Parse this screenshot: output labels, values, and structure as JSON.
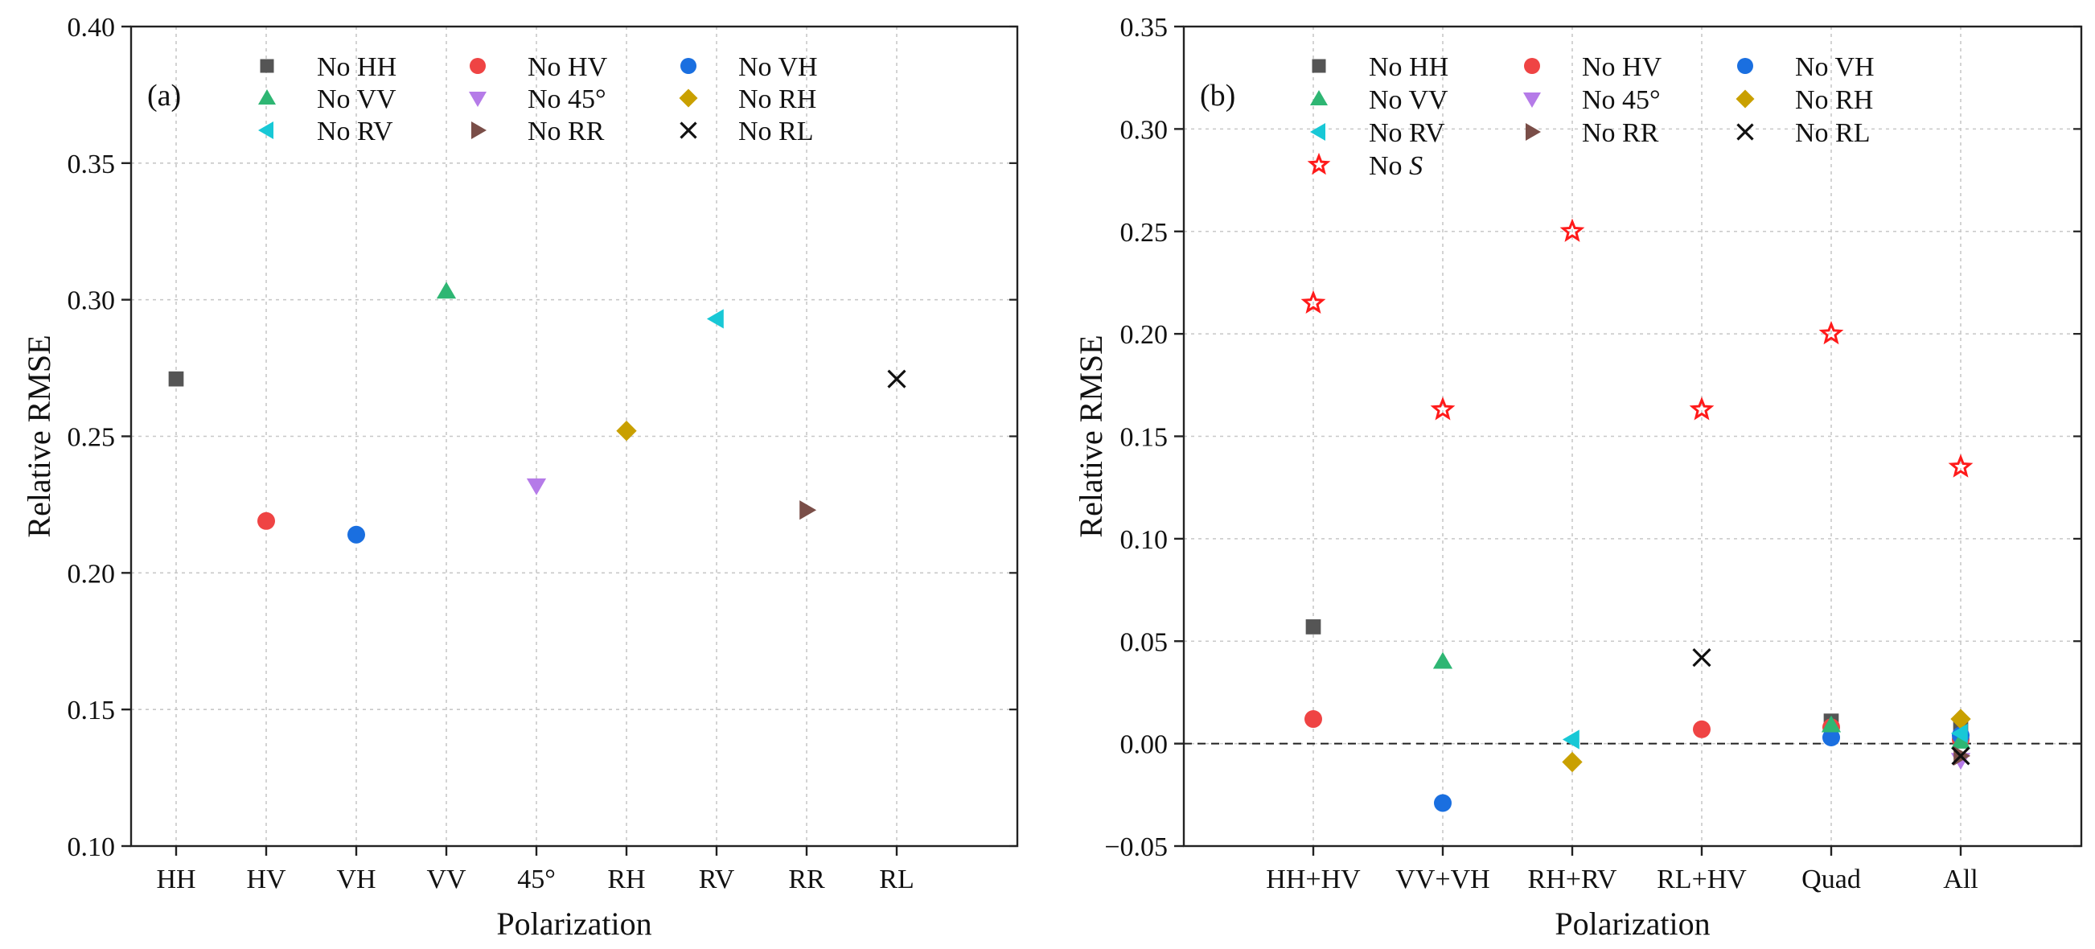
{
  "chart_data": [
    {
      "panel_label": "(a)",
      "type": "scatter",
      "xlabel": "Polarization",
      "ylabel": "Relative RMSE",
      "ylim": [
        0.1,
        0.4
      ],
      "yticks": [
        "0.10",
        "0.15",
        "0.20",
        "0.25",
        "0.30",
        "0.35",
        "0.40"
      ],
      "ytick_values": [
        0.1,
        0.15,
        0.2,
        0.25,
        0.3,
        0.35,
        0.4
      ],
      "categories": [
        "HH",
        "HV",
        "VH",
        "VV",
        "45°",
        "RH",
        "RV",
        "RR",
        "RL"
      ],
      "grid": true,
      "series": [
        {
          "name": "No HH",
          "marker": "square",
          "color": "#555555",
          "points": [
            {
              "cat": 0,
              "y": 0.271
            }
          ]
        },
        {
          "name": "No HV",
          "marker": "circle",
          "color": "#ef4444",
          "points": [
            {
              "cat": 1,
              "y": 0.219
            }
          ]
        },
        {
          "name": "No VH",
          "marker": "circle",
          "color": "#1a6fe0",
          "points": [
            {
              "cat": 2,
              "y": 0.214
            }
          ]
        },
        {
          "name": "No VV",
          "marker": "triangle-up",
          "color": "#2eb673",
          "points": [
            {
              "cat": 3,
              "y": 0.303
            }
          ]
        },
        {
          "name": "No 45°",
          "marker": "triangle-down",
          "color": "#b57be8",
          "points": [
            {
              "cat": 4,
              "y": 0.232
            }
          ]
        },
        {
          "name": "No RH",
          "marker": "diamond",
          "color": "#c9a000",
          "points": [
            {
              "cat": 5,
              "y": 0.252
            }
          ]
        },
        {
          "name": "No RV",
          "marker": "triangle-left",
          "color": "#18c8d6",
          "points": [
            {
              "cat": 6,
              "y": 0.293
            }
          ]
        },
        {
          "name": "No RR",
          "marker": "triangle-right",
          "color": "#7a4e48",
          "points": [
            {
              "cat": 7,
              "y": 0.223
            }
          ]
        },
        {
          "name": "No RL",
          "marker": "x",
          "color": "#111111",
          "points": [
            {
              "cat": 8,
              "y": 0.271
            }
          ]
        }
      ]
    },
    {
      "panel_label": "(b)",
      "type": "scatter",
      "xlabel": "Polarization",
      "ylabel": "Relative RMSE",
      "ylim": [
        -0.05,
        0.35
      ],
      "yticks": [
        "−0.05",
        "0.00",
        "0.05",
        "0.10",
        "0.15",
        "0.20",
        "0.25",
        "0.30",
        "0.35"
      ],
      "ytick_values": [
        -0.05,
        0.0,
        0.05,
        0.1,
        0.15,
        0.2,
        0.25,
        0.3,
        0.35
      ],
      "categories": [
        "HH+HV",
        "VV+VH",
        "RH+RV",
        "RL+HV",
        "Quad",
        "All"
      ],
      "grid": true,
      "reference_line": 0.0,
      "series": [
        {
          "name": "No HH",
          "marker": "square",
          "color": "#555555",
          "points": [
            {
              "cat": 0,
              "y": 0.057
            },
            {
              "cat": 4,
              "y": 0.011
            },
            {
              "cat": 5,
              "y": 0.008
            }
          ]
        },
        {
          "name": "No HV",
          "marker": "circle",
          "color": "#ef4444",
          "points": [
            {
              "cat": 0,
              "y": 0.012
            },
            {
              "cat": 3,
              "y": 0.007
            },
            {
              "cat": 4,
              "y": 0.008
            },
            {
              "cat": 5,
              "y": 0.002
            }
          ]
        },
        {
          "name": "No VH",
          "marker": "circle",
          "color": "#1a6fe0",
          "points": [
            {
              "cat": 1,
              "y": -0.029
            },
            {
              "cat": 4,
              "y": 0.003
            },
            {
              "cat": 5,
              "y": 0.004
            }
          ]
        },
        {
          "name": "No VV",
          "marker": "triangle-up",
          "color": "#2eb673",
          "points": [
            {
              "cat": 1,
              "y": 0.04
            },
            {
              "cat": 4,
              "y": 0.009
            },
            {
              "cat": 5,
              "y": 0.001
            }
          ]
        },
        {
          "name": "No 45°",
          "marker": "triangle-down",
          "color": "#b57be8",
          "points": [
            {
              "cat": 5,
              "y": -0.008
            }
          ]
        },
        {
          "name": "No RH",
          "marker": "diamond",
          "color": "#c9a000",
          "points": [
            {
              "cat": 2,
              "y": -0.009
            },
            {
              "cat": 5,
              "y": 0.012
            }
          ]
        },
        {
          "name": "No RV",
          "marker": "triangle-left",
          "color": "#18c8d6",
          "points": [
            {
              "cat": 2,
              "y": 0.002
            },
            {
              "cat": 5,
              "y": 0.005
            }
          ]
        },
        {
          "name": "No RR",
          "marker": "triangle-right",
          "color": "#7a4e48",
          "points": [
            {
              "cat": 5,
              "y": -0.006
            }
          ]
        },
        {
          "name": "No RL",
          "marker": "x",
          "color": "#111111",
          "points": [
            {
              "cat": 3,
              "y": 0.042
            },
            {
              "cat": 5,
              "y": -0.006
            }
          ]
        },
        {
          "name": "No S",
          "name_prefix": "No ",
          "name_italic": "S",
          "marker": "star",
          "color": "#ff1a1a",
          "points": [
            {
              "cat": 0,
              "y": 0.215
            },
            {
              "cat": 1,
              "y": 0.163
            },
            {
              "cat": 2,
              "y": 0.25
            },
            {
              "cat": 3,
              "y": 0.163
            },
            {
              "cat": 4,
              "y": 0.2
            },
            {
              "cat": 5,
              "y": 0.135
            }
          ]
        }
      ]
    }
  ]
}
